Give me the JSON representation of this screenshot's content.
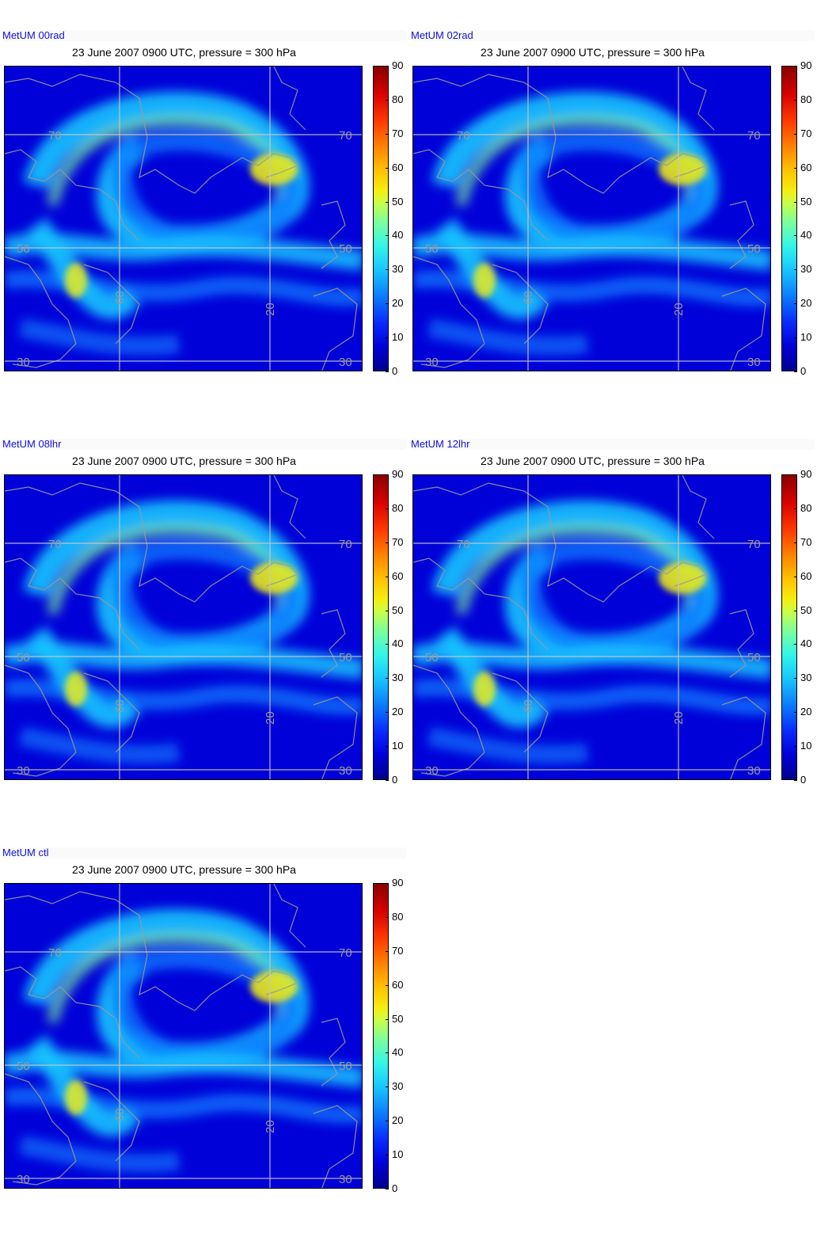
{
  "title": "23 June 2007 0900 UTC, pressure = 300 hPa",
  "colorbar": {
    "ticks": [
      "0",
      "10",
      "20",
      "30",
      "40",
      "50",
      "60",
      "70",
      "80",
      "90"
    ],
    "min": 0,
    "max": 90
  },
  "grid_labels": {
    "lat_top": "70",
    "lat_mid": "50",
    "lat_bottom": "30",
    "lon_left": "60",
    "lon_right": "20"
  },
  "colors": {
    "background": "#0000d8",
    "jet_core": "#f5ee12",
    "jet_mid": "#18c4ff",
    "coast": "#9a9a9a",
    "grid": "#c8c8c8",
    "label": "#1010d8"
  },
  "panels": [
    {
      "id": "00rad",
      "label": "MetUM 00rad"
    },
    {
      "id": "02rad",
      "label": "MetUM 02rad"
    },
    {
      "id": "08lhr",
      "label": "MetUM 08lhr"
    },
    {
      "id": "12lhr",
      "label": "MetUM 12lhr"
    },
    {
      "id": "ctl",
      "label": "MetUM ctl"
    }
  ]
}
